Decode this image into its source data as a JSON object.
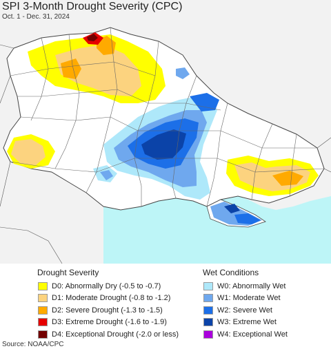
{
  "header": {
    "title": "SPI 3-Month Drought Severity (CPC)",
    "subtitle": "Oct. 1 - Dec. 31, 2024"
  },
  "legend": {
    "drought": {
      "heading": "Drought Severity",
      "items": [
        {
          "label": "D0: Abnormally Dry (-0.5 to -0.7)",
          "color": "#ffff00"
        },
        {
          "label": "D1: Moderate Drought (-0.8 to -1.2)",
          "color": "#fcd37f"
        },
        {
          "label": "D2: Severe Drought (-1.3 to -1.5)",
          "color": "#ffaa00"
        },
        {
          "label": "D3: Extreme Drought (-1.6 to -1.9)",
          "color": "#e60000"
        },
        {
          "label": "D4: Exceptional Drought (-2.0 or less)",
          "color": "#730000"
        }
      ]
    },
    "wet": {
      "heading": "Wet Conditions",
      "items": [
        {
          "label": "W0: Abnormally Wet",
          "color": "#aee8fa"
        },
        {
          "label": "W1: Moderate Wet",
          "color": "#6fa8ee"
        },
        {
          "label": "W2: Severe Wet",
          "color": "#1c6fe8"
        },
        {
          "label": "W3: Extreme Wet",
          "color": "#0b43a8"
        },
        {
          "label": "W4: Exceptional Wet",
          "color": "#aa00dd"
        }
      ]
    }
  },
  "source": "Source: NOAA/CPC",
  "colors": {
    "sea": "#bdf5f7",
    "land": "#ffffff",
    "outside": "#f2f2f2"
  }
}
